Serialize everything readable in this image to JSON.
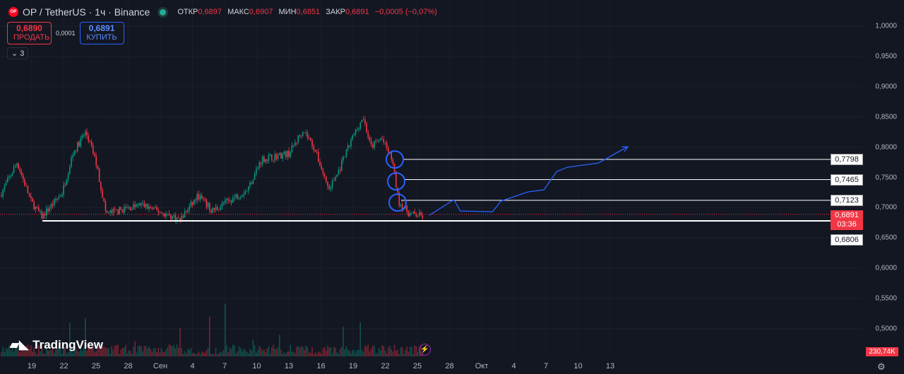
{
  "header": {
    "logo_text": "OP",
    "title": "OP / TetherUS · 1ч · Binance",
    "ohlc": [
      {
        "k": "ОТКР",
        "v": "0,6897"
      },
      {
        "k": "МАКС",
        "v": "0,6907"
      },
      {
        "k": "МИН",
        "v": "0,6851"
      },
      {
        "k": "ЗАКР",
        "v": "0,6891"
      }
    ],
    "change": "−0,0005 (−0,07%)"
  },
  "trade": {
    "sell_price": "0,6890",
    "sell_label": "ПРОДАТЬ",
    "spread": "0,0001",
    "buy_price": "0,6891",
    "buy_label": "КУПИТЬ"
  },
  "indicators_collapse": "3",
  "price_axis": [
    "1,0000",
    "0,9500",
    "0,9000",
    "0,8500",
    "0,8000",
    "0,7500",
    "0,7000",
    "0,6500",
    "0,6000",
    "0,5500",
    "0,5000"
  ],
  "levels": [
    {
      "price": 0.7798,
      "label": "0,7798"
    },
    {
      "price": 0.7465,
      "label": "0,7465"
    },
    {
      "price": 0.7123,
      "label": "0,7123"
    },
    {
      "price": 0.6806,
      "label": "0,6806"
    }
  ],
  "current": {
    "price": "0,6891",
    "countdown": "03:36"
  },
  "volume_label": "230,74K",
  "time_axis": [
    "19",
    "22",
    "25",
    "28",
    "Сен",
    "4",
    "7",
    "10",
    "13",
    "16",
    "19",
    "22",
    "25",
    "28",
    "Окт",
    "4",
    "7",
    "10",
    "13"
  ],
  "brand": "TradingView",
  "price_path": [
    [
      0,
      0.72
    ],
    [
      1.6,
      0.775
    ],
    [
      2.9,
      0.71
    ],
    [
      3.9,
      0.685
    ],
    [
      5.8,
      0.725
    ],
    [
      6.8,
      0.79
    ],
    [
      8,
      0.825
    ],
    [
      8.9,
      0.78
    ],
    [
      9.9,
      0.69
    ],
    [
      13.2,
      0.705
    ],
    [
      16.8,
      0.68
    ],
    [
      18.5,
      0.72
    ],
    [
      19.8,
      0.695
    ],
    [
      23.1,
      0.73
    ],
    [
      24.4,
      0.78
    ],
    [
      27,
      0.79
    ],
    [
      28.3,
      0.83
    ],
    [
      29.3,
      0.8
    ],
    [
      30.7,
      0.73
    ],
    [
      31.6,
      0.76
    ],
    [
      33,
      0.82
    ],
    [
      33.9,
      0.85
    ],
    [
      34.6,
      0.8
    ],
    [
      35.6,
      0.815
    ],
    [
      36.6,
      0.78
    ],
    [
      37.2,
      0.71
    ],
    [
      38.2,
      0.69
    ],
    [
      39.6,
      0.685
    ]
  ],
  "forecast_path": [
    [
      37.1,
      0.6876
    ],
    [
      39.4,
      0.7133
    ],
    [
      40,
      0.6946
    ],
    [
      43,
      0.6935
    ],
    [
      43.8,
      0.711
    ],
    [
      46.3,
      0.7261
    ],
    [
      47.8,
      0.7296
    ],
    [
      49,
      0.7599
    ],
    [
      50,
      0.7669
    ],
    [
      52.9,
      0.7739
    ],
    [
      55.6,
      0.8007
    ]
  ],
  "colors": {
    "up": "#089981",
    "down": "#f23645",
    "forecast": "#2962ff",
    "bg": "#131722"
  }
}
